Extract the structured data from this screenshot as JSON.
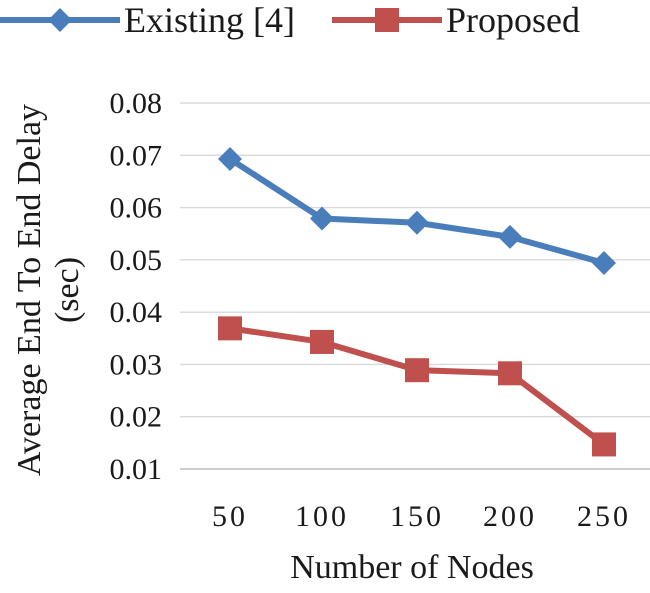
{
  "chart_data": {
    "type": "line",
    "title": "",
    "xlabel": "Number of Nodes",
    "ylabel_lines": [
      "Average End To End Delay",
      "(sec)"
    ],
    "categories": [
      "50",
      "100",
      "150",
      "200",
      "250"
    ],
    "ylim": [
      0.01,
      0.08
    ],
    "yticks": [
      "0.01",
      "0.02",
      "0.03",
      "0.04",
      "0.05",
      "0.06",
      "0.07",
      "0.08"
    ],
    "ytick_values": [
      0.01,
      0.02,
      0.03,
      0.04,
      0.05,
      0.06,
      0.07,
      0.08
    ],
    "grid": "horizontal",
    "legend_position": "top",
    "series": [
      {
        "name": "Existing [4]",
        "marker": "diamond",
        "color": "#4a7ebb",
        "values": [
          0.0693,
          0.0579,
          0.0571,
          0.0544,
          0.0494
        ]
      },
      {
        "name": "Proposed",
        "marker": "square",
        "color": "#c0504d",
        "values": [
          0.0369,
          0.0343,
          0.0289,
          0.0283,
          0.0147
        ]
      }
    ]
  }
}
